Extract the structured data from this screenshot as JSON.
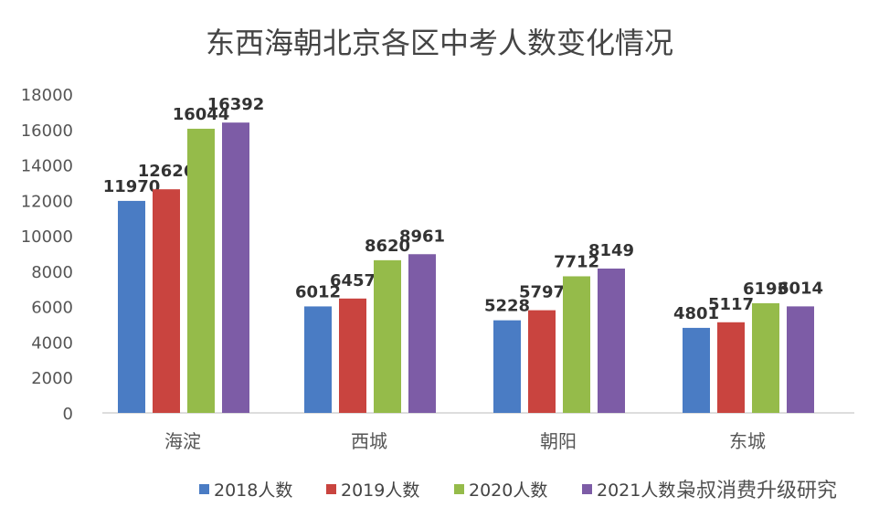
{
  "chart_data": {
    "type": "bar",
    "title": "东西海朝北京各区中考人数变化情况",
    "categories": [
      "海淀",
      "西城",
      "朝阳",
      "东城"
    ],
    "series": [
      {
        "name": "2018人数",
        "color": "#4a7cc4",
        "values": [
          11970,
          6012,
          5228,
          4801
        ]
      },
      {
        "name": "2019人数",
        "color": "#c9443f",
        "values": [
          12626,
          6457,
          5797,
          5117
        ]
      },
      {
        "name": "2020人数",
        "color": "#95bb4a",
        "values": [
          16044,
          8620,
          7712,
          6193
        ]
      },
      {
        "name": "2021人数",
        "color": "#7d5ca6",
        "values": [
          16392,
          8961,
          8149,
          6014
        ]
      }
    ],
    "ylim": [
      0,
      18000
    ],
    "yticks": [
      0,
      2000,
      4000,
      6000,
      8000,
      10000,
      12000,
      14000,
      16000,
      18000
    ],
    "grid": false,
    "legend": "bottom",
    "xlabel": "",
    "ylabel": ""
  },
  "watermark": "枭叔消费升级研究"
}
